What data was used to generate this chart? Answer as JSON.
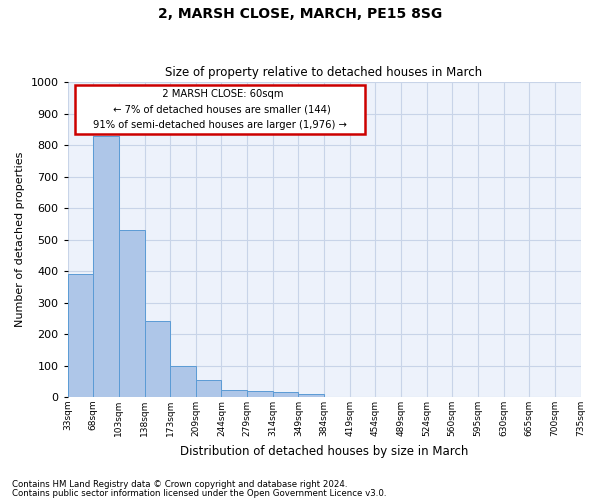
{
  "title1": "2, MARSH CLOSE, MARCH, PE15 8SG",
  "title2": "Size of property relative to detached houses in March",
  "xlabel": "Distribution of detached houses by size in March",
  "ylabel": "Number of detached properties",
  "footnote1": "Contains HM Land Registry data © Crown copyright and database right 2024.",
  "footnote2": "Contains public sector information licensed under the Open Government Licence v3.0.",
  "annotation_line1": "2 MARSH CLOSE: 60sqm",
  "annotation_line2": "← 7% of detached houses are smaller (144)",
  "annotation_line3": "91% of semi-detached houses are larger (1,976) →",
  "bar_values": [
    390,
    830,
    530,
    240,
    97,
    53,
    21,
    18,
    15,
    10,
    0,
    0,
    0,
    0,
    0,
    0,
    0,
    0,
    0,
    0
  ],
  "categories": [
    "33sqm",
    "68sqm",
    "103sqm",
    "138sqm",
    "173sqm",
    "209sqm",
    "244sqm",
    "279sqm",
    "314sqm",
    "349sqm",
    "384sqm",
    "419sqm",
    "454sqm",
    "489sqm",
    "524sqm",
    "560sqm",
    "595sqm",
    "630sqm",
    "665sqm",
    "700sqm",
    "735sqm"
  ],
  "ylim": [
    0,
    1000
  ],
  "yticks": [
    0,
    100,
    200,
    300,
    400,
    500,
    600,
    700,
    800,
    900,
    1000
  ],
  "bar_fill_color": "#aec6e8",
  "bar_edge_color": "#5b9bd5",
  "grid_color": "#c8d4e8",
  "background_color": "#edf2fb",
  "annotation_box_color": "#cc0000"
}
